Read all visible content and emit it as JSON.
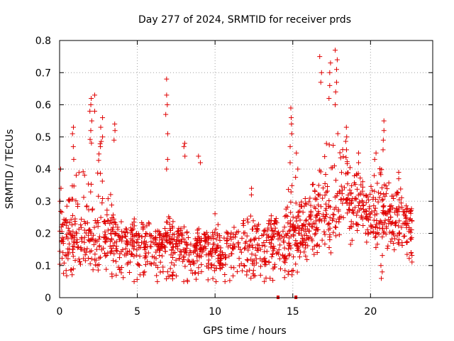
{
  "chart_data": {
    "type": "scatter",
    "title": "Day 277 of 2024, SRMTID for receiver prds",
    "xlabel": "GPS time / hours",
    "ylabel": "SRMTID / TECUs",
    "xlim": [
      0,
      24
    ],
    "ylim": [
      0,
      0.8
    ],
    "xticks": [
      0,
      5,
      10,
      15,
      20
    ],
    "xtick_labels": [
      "0",
      "5",
      "10",
      "15",
      "20"
    ],
    "yticks": [
      0,
      0.1,
      0.2,
      0.3,
      0.4,
      0.5,
      0.6,
      0.7,
      0.8
    ],
    "ytick_labels": [
      "0",
      "0.1",
      "0.2",
      "0.3",
      "0.4",
      "0.5",
      "0.6",
      "0.7",
      "0.8"
    ],
    "grid": true,
    "marker": "+",
    "color": "#e00000",
    "x_end": 22.7,
    "baseline_marks_x": [
      14.05,
      15.2
    ],
    "envelope": [
      [
        0.0,
        0.18,
        0.32
      ],
      [
        0.5,
        0.17,
        0.3
      ],
      [
        1.0,
        0.16,
        0.38
      ],
      [
        1.5,
        0.17,
        0.4
      ],
      [
        2.0,
        0.18,
        0.5
      ],
      [
        2.5,
        0.17,
        0.52
      ],
      [
        3.0,
        0.17,
        0.38
      ],
      [
        3.5,
        0.16,
        0.26
      ],
      [
        4.0,
        0.15,
        0.22
      ],
      [
        4.5,
        0.15,
        0.22
      ],
      [
        5.0,
        0.15,
        0.22
      ],
      [
        5.5,
        0.15,
        0.22
      ],
      [
        6.0,
        0.14,
        0.21
      ],
      [
        6.5,
        0.14,
        0.21
      ],
      [
        7.0,
        0.15,
        0.25
      ],
      [
        7.5,
        0.14,
        0.2
      ],
      [
        8.0,
        0.13,
        0.22
      ],
      [
        8.5,
        0.12,
        0.18
      ],
      [
        9.0,
        0.13,
        0.19
      ],
      [
        9.5,
        0.14,
        0.2
      ],
      [
        10.0,
        0.14,
        0.21
      ],
      [
        10.5,
        0.13,
        0.2
      ],
      [
        11.0,
        0.13,
        0.2
      ],
      [
        11.5,
        0.14,
        0.22
      ],
      [
        12.0,
        0.15,
        0.25
      ],
      [
        12.5,
        0.14,
        0.24
      ],
      [
        13.0,
        0.14,
        0.22
      ],
      [
        13.5,
        0.16,
        0.24
      ],
      [
        14.0,
        0.17,
        0.25
      ],
      [
        14.5,
        0.15,
        0.28
      ],
      [
        15.0,
        0.18,
        0.4
      ],
      [
        15.5,
        0.19,
        0.3
      ],
      [
        16.0,
        0.21,
        0.32
      ],
      [
        16.5,
        0.22,
        0.38
      ],
      [
        17.0,
        0.24,
        0.45
      ],
      [
        17.5,
        0.24,
        0.55
      ],
      [
        18.0,
        0.26,
        0.65
      ],
      [
        18.5,
        0.28,
        0.45
      ],
      [
        19.0,
        0.27,
        0.38
      ],
      [
        19.5,
        0.26,
        0.36
      ],
      [
        20.0,
        0.25,
        0.38
      ],
      [
        20.5,
        0.22,
        0.4
      ],
      [
        21.0,
        0.23,
        0.38
      ],
      [
        21.5,
        0.23,
        0.34
      ],
      [
        22.0,
        0.24,
        0.33
      ],
      [
        22.5,
        0.21,
        0.28
      ]
    ],
    "spikes": [
      {
        "x": 0.1,
        "values": [
          0.34,
          0.4,
          0.3
        ]
      },
      {
        "x": 0.9,
        "values": [
          0.53,
          0.51,
          0.47,
          0.43
        ]
      },
      {
        "x": 2.0,
        "values": [
          0.62,
          0.6,
          0.58,
          0.55,
          0.52
        ]
      },
      {
        "x": 2.3,
        "values": [
          0.63,
          0.58
        ]
      },
      {
        "x": 2.7,
        "values": [
          0.56,
          0.53,
          0.5,
          0.47
        ]
      },
      {
        "x": 3.5,
        "values": [
          0.54,
          0.52,
          0.49
        ]
      },
      {
        "x": 6.9,
        "values": [
          0.68,
          0.63,
          0.6,
          0.57,
          0.51,
          0.43,
          0.4
        ]
      },
      {
        "x": 8.0,
        "values": [
          0.48,
          0.47,
          0.44
        ]
      },
      {
        "x": 9.0,
        "values": [
          0.44,
          0.42
        ]
      },
      {
        "x": 12.3,
        "values": [
          0.34,
          0.32
        ]
      },
      {
        "x": 14.9,
        "values": [
          0.59,
          0.56,
          0.54,
          0.51,
          0.47,
          0.42
        ]
      },
      {
        "x": 15.3,
        "values": [
          0.45,
          0.4
        ]
      },
      {
        "x": 16.8,
        "values": [
          0.75,
          0.7,
          0.67
        ]
      },
      {
        "x": 17.4,
        "values": [
          0.73,
          0.7,
          0.66,
          0.62
        ]
      },
      {
        "x": 17.8,
        "values": [
          0.77,
          0.74,
          0.71,
          0.67,
          0.64,
          0.6
        ]
      },
      {
        "x": 18.4,
        "values": [
          0.53,
          0.5,
          0.46
        ]
      },
      {
        "x": 19.3,
        "values": [
          0.45,
          0.42
        ]
      },
      {
        "x": 20.3,
        "values": [
          0.45,
          0.43
        ]
      },
      {
        "x": 20.8,
        "values": [
          0.55,
          0.52,
          0.49,
          0.46
        ]
      },
      {
        "x": 20.7,
        "values": [
          0.1,
          0.08,
          0.06
        ]
      },
      {
        "x": 21.8,
        "values": [
          0.39,
          0.37
        ]
      }
    ]
  }
}
